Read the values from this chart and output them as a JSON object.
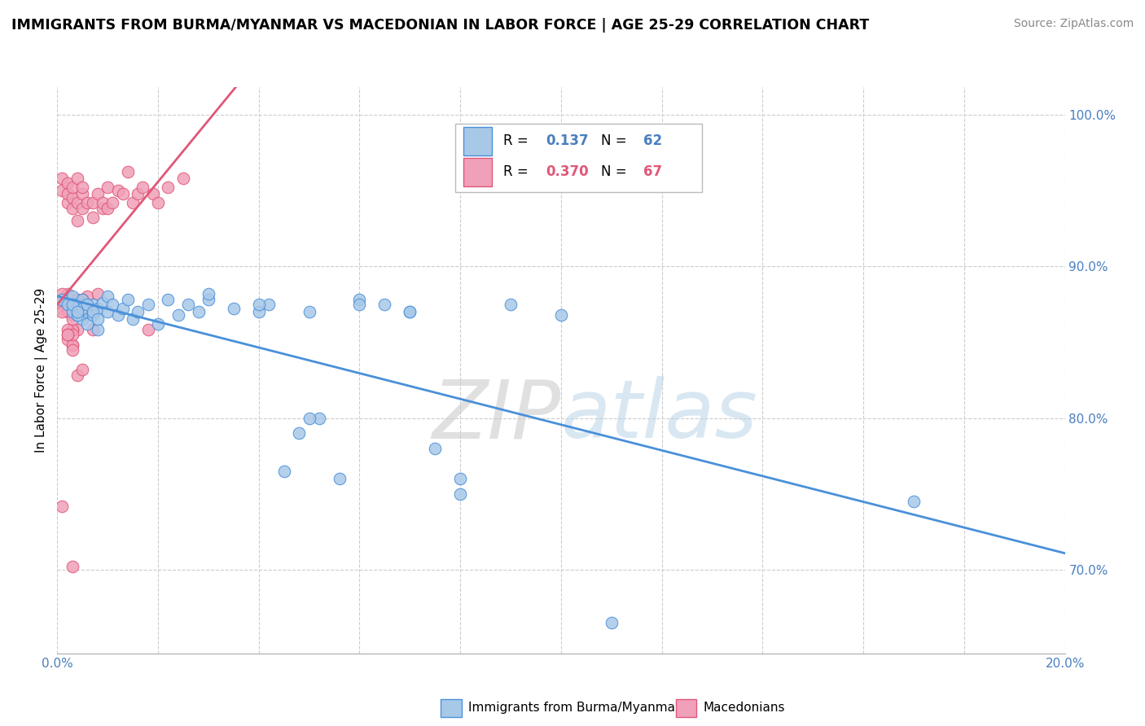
{
  "title": "IMMIGRANTS FROM BURMA/MYANMAR VS MACEDONIAN IN LABOR FORCE | AGE 25-29 CORRELATION CHART",
  "source": "Source: ZipAtlas.com",
  "ylabel": "In Labor Force | Age 25-29",
  "legend_blue": "Immigrants from Burma/Myanmar",
  "legend_pink": "Macedonians",
  "R_blue": 0.137,
  "N_blue": 62,
  "R_pink": 0.37,
  "N_pink": 67,
  "color_blue": "#a8c8e8",
  "color_pink": "#f0a0b8",
  "color_blue_line": "#4a90d9",
  "color_pink_line": "#e05878",
  "color_blue_text": "#4a7fc0",
  "color_pink_text": "#e05878",
  "watermark_zip": "ZIP",
  "watermark_atlas": "atlas",
  "blue_x": [
    0.002,
    0.003,
    0.003,
    0.004,
    0.004,
    0.005,
    0.005,
    0.006,
    0.006,
    0.007,
    0.007,
    0.008,
    0.008,
    0.009,
    0.01,
    0.01,
    0.011,
    0.012,
    0.013,
    0.014,
    0.015,
    0.016,
    0.018,
    0.02,
    0.022,
    0.024,
    0.026,
    0.028,
    0.03,
    0.035,
    0.04,
    0.042,
    0.045,
    0.048,
    0.052,
    0.056,
    0.06,
    0.065,
    0.07,
    0.075,
    0.08,
    0.09,
    0.1,
    0.11,
    0.03,
    0.04,
    0.05,
    0.06,
    0.07,
    0.08,
    0.05,
    0.17,
    0.001,
    0.002,
    0.003,
    0.004,
    0.005,
    0.006,
    0.007,
    0.008,
    0.003,
    0.004
  ],
  "blue_y": [
    0.876,
    0.872,
    0.88,
    0.868,
    0.875,
    0.865,
    0.878,
    0.87,
    0.862,
    0.875,
    0.868,
    0.872,
    0.858,
    0.876,
    0.87,
    0.88,
    0.875,
    0.868,
    0.872,
    0.878,
    0.865,
    0.87,
    0.875,
    0.862,
    0.878,
    0.868,
    0.875,
    0.87,
    0.878,
    0.872,
    0.87,
    0.875,
    0.765,
    0.79,
    0.8,
    0.76,
    0.878,
    0.875,
    0.87,
    0.78,
    0.76,
    0.875,
    0.868,
    0.665,
    0.882,
    0.875,
    0.87,
    0.875,
    0.87,
    0.75,
    0.8,
    0.745,
    0.878,
    0.875,
    0.87,
    0.868,
    0.872,
    0.875,
    0.87,
    0.865,
    0.875,
    0.87
  ],
  "pink_x": [
    0.001,
    0.001,
    0.001,
    0.002,
    0.002,
    0.002,
    0.003,
    0.003,
    0.003,
    0.004,
    0.004,
    0.004,
    0.005,
    0.005,
    0.005,
    0.006,
    0.006,
    0.007,
    0.007,
    0.008,
    0.008,
    0.009,
    0.009,
    0.01,
    0.01,
    0.011,
    0.012,
    0.013,
    0.014,
    0.015,
    0.016,
    0.017,
    0.018,
    0.019,
    0.02,
    0.022,
    0.025,
    0.003,
    0.004,
    0.004,
    0.005,
    0.005,
    0.006,
    0.007,
    0.002,
    0.003,
    0.004,
    0.005,
    0.001,
    0.002,
    0.003,
    0.004,
    0.002,
    0.003,
    0.003,
    0.001,
    0.002,
    0.003,
    0.001,
    0.002,
    0.003,
    0.004,
    0.003,
    0.002,
    0.001,
    0.002,
    0.003
  ],
  "pink_y": [
    0.878,
    0.95,
    0.958,
    0.942,
    0.955,
    0.948,
    0.938,
    0.945,
    0.952,
    0.93,
    0.942,
    0.958,
    0.938,
    0.948,
    0.952,
    0.942,
    0.88,
    0.932,
    0.942,
    0.948,
    0.882,
    0.938,
    0.942,
    0.938,
    0.952,
    0.942,
    0.95,
    0.948,
    0.962,
    0.942,
    0.948,
    0.952,
    0.858,
    0.948,
    0.942,
    0.952,
    0.958,
    0.848,
    0.858,
    0.828,
    0.872,
    0.878,
    0.872,
    0.858,
    0.882,
    0.858,
    0.878,
    0.832,
    0.872,
    0.872,
    0.868,
    0.872,
    0.852,
    0.858,
    0.702,
    0.882,
    0.858,
    0.848,
    0.742,
    0.87,
    0.855,
    0.87,
    0.865,
    0.855,
    0.87,
    0.855,
    0.845
  ]
}
